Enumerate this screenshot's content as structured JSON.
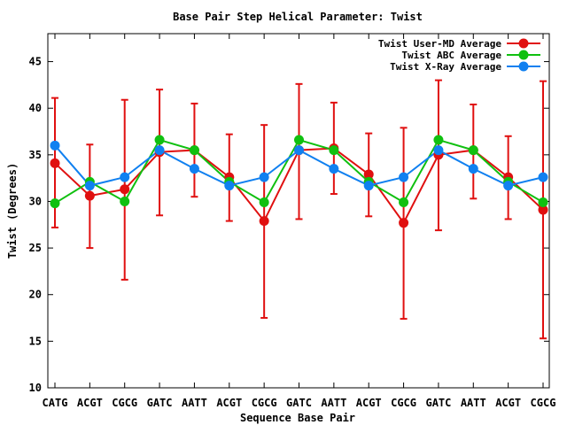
{
  "chart_data": {
    "type": "line",
    "title": "Base Pair Step Helical Parameter: Twist",
    "xlabel": "Sequence Base Pair",
    "ylabel": "Twist (Degrees)",
    "ylim": [
      10,
      48
    ],
    "yticks": [
      10,
      15,
      20,
      25,
      30,
      35,
      40,
      45
    ],
    "grid": false,
    "legend": "top-right",
    "categories": [
      "CATG",
      "ACGT",
      "CGCG",
      "GATC",
      "AATT",
      "ACGT",
      "CGCG",
      "GATC",
      "AATT",
      "ACGT",
      "CGCG",
      "GATC",
      "AATT",
      "ACGT",
      "CGCG"
    ],
    "series": [
      {
        "name": "Twist User-MD Average",
        "color": "#e01010",
        "values": [
          34.1,
          30.6,
          31.3,
          35.3,
          35.5,
          32.6,
          27.9,
          35.5,
          35.7,
          32.9,
          27.7,
          35.0,
          35.5,
          32.6,
          29.1
        ],
        "err_low": [
          27.2,
          25.0,
          21.6,
          28.5,
          30.5,
          27.9,
          17.5,
          28.1,
          30.8,
          28.4,
          17.4,
          26.9,
          30.3,
          28.1,
          15.3
        ],
        "err_high": [
          41.1,
          36.1,
          40.9,
          42.0,
          40.5,
          37.2,
          38.2,
          42.6,
          40.6,
          37.3,
          37.9,
          43.0,
          40.4,
          37.0,
          42.9
        ]
      },
      {
        "name": "Twist ABC Average",
        "color": "#10c010",
        "values": [
          29.8,
          32.1,
          30.0,
          36.6,
          35.5,
          32.1,
          29.9,
          36.6,
          35.5,
          32.1,
          29.9,
          36.6,
          35.5,
          32.1,
          29.9
        ]
      },
      {
        "name": "Twist X-Ray Average",
        "color": "#1080f0",
        "values": [
          36.0,
          31.7,
          32.6,
          35.5,
          33.5,
          31.7,
          32.6,
          35.5,
          33.5,
          31.7,
          32.6,
          35.5,
          33.5,
          31.7,
          32.6
        ]
      }
    ]
  }
}
